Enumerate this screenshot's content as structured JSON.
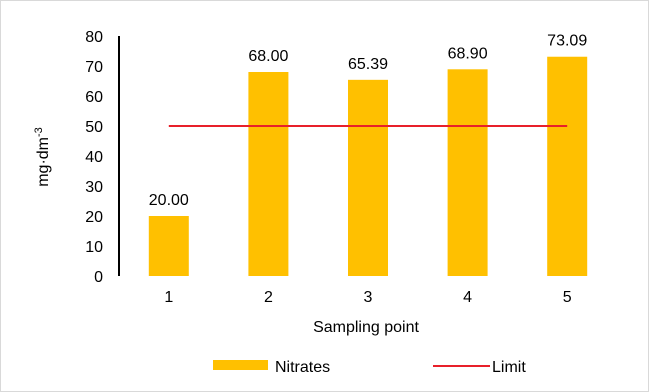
{
  "chart_data": {
    "type": "bar",
    "xlabel": "Sampling point",
    "ylabel": "mg·dm",
    "ylabel_superscript": "-3",
    "categories": [
      "1",
      "2",
      "3",
      "4",
      "5"
    ],
    "ylim": [
      0,
      80
    ],
    "yticks": [
      "0",
      "10",
      "20",
      "30",
      "40",
      "50",
      "60",
      "70",
      "80"
    ],
    "grid": false,
    "legend_position": "bottom",
    "series": [
      {
        "name": "Nitrates",
        "kind": "bar",
        "color": "#FFC000",
        "values": [
          20.0,
          68.0,
          65.39,
          68.9,
          73.09
        ],
        "labels": [
          "20.00",
          "68.00",
          "65.39",
          "68.90",
          "73.09"
        ]
      },
      {
        "name": "Limit",
        "kind": "line",
        "color": "#E8202A",
        "values": [
          50,
          50,
          50,
          50,
          50
        ]
      }
    ]
  }
}
